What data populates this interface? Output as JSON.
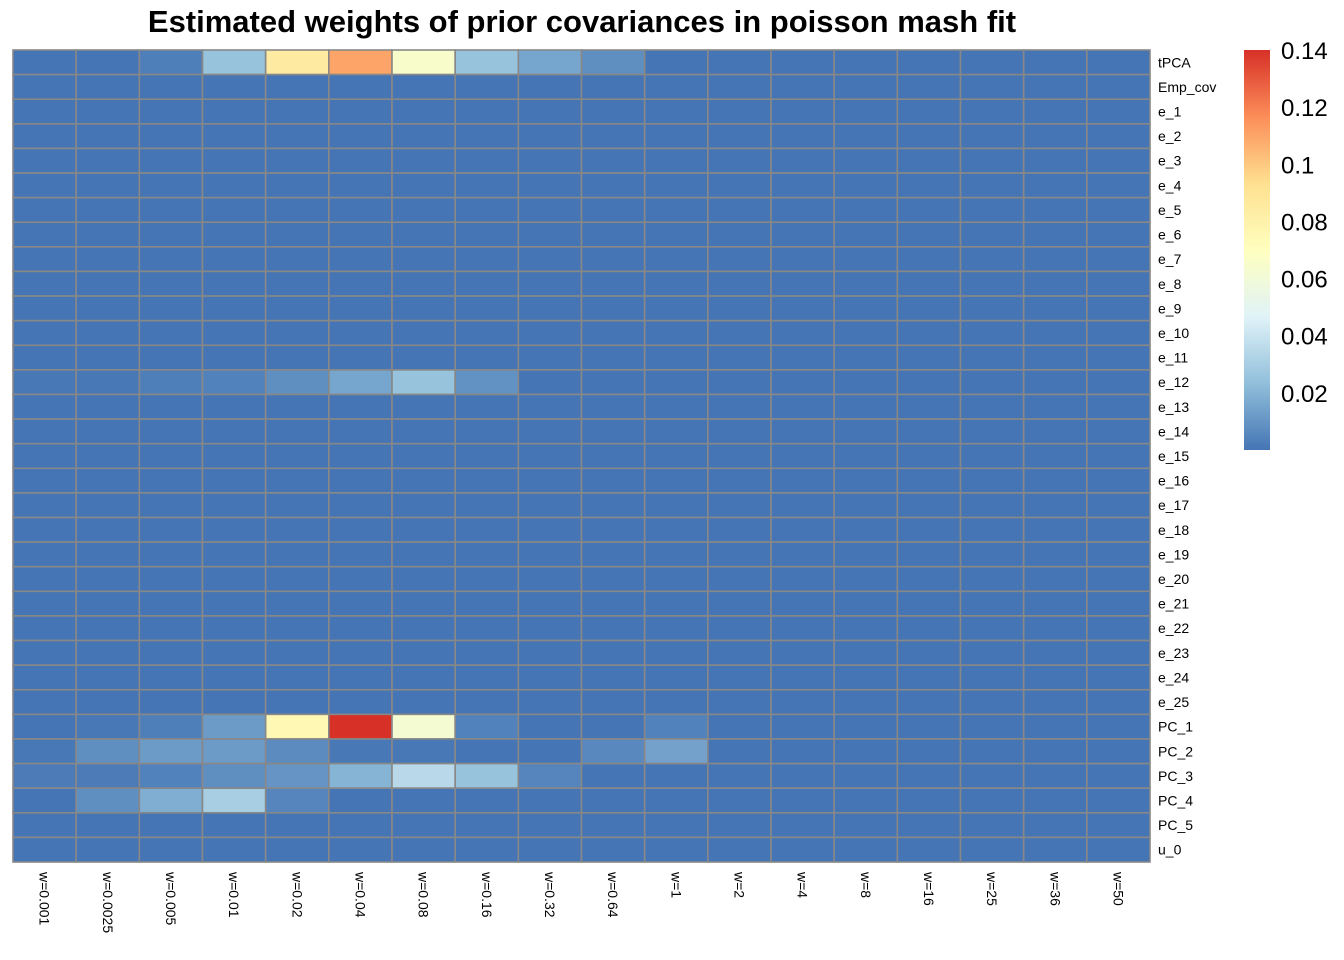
{
  "chart_data": {
    "type": "heatmap",
    "title": "Estimated weights of prior covariances in poisson mash fit",
    "columns": [
      "w=0.001",
      "w=0.0025",
      "w=0.005",
      "w=0.01",
      "w=0.02",
      "w=0.04",
      "w=0.08",
      "w=0.16",
      "w=0.32",
      "w=0.64",
      "w=1",
      "w=2",
      "w=4",
      "w=8",
      "w=16",
      "w=25",
      "w=36",
      "w=50"
    ],
    "rows": [
      "tPCA",
      "Emp_cov",
      "e_1",
      "e_2",
      "e_3",
      "e_4",
      "e_5",
      "e_6",
      "e_7",
      "e_8",
      "e_9",
      "e_10",
      "e_11",
      "e_12",
      "e_13",
      "e_14",
      "e_15",
      "e_16",
      "e_17",
      "e_18",
      "e_19",
      "e_20",
      "e_21",
      "e_22",
      "e_23",
      "e_24",
      "e_25",
      "PC_1",
      "PC_2",
      "PC_3",
      "PC_4",
      "PC_5",
      "u_0"
    ],
    "values": [
      [
        0.0,
        0.0,
        0.003,
        0.025,
        0.085,
        0.11,
        0.065,
        0.025,
        0.015,
        0.008,
        0,
        0,
        0,
        0,
        0,
        0,
        0,
        0
      ],
      [
        0,
        0,
        0,
        0,
        0,
        0,
        0,
        0,
        0,
        0,
        0,
        0,
        0,
        0,
        0,
        0,
        0,
        0
      ],
      [
        0,
        0,
        0,
        0,
        0,
        0,
        0,
        0,
        0,
        0,
        0,
        0,
        0,
        0,
        0,
        0,
        0,
        0
      ],
      [
        0,
        0,
        0,
        0,
        0,
        0,
        0,
        0,
        0,
        0,
        0,
        0,
        0,
        0,
        0,
        0,
        0,
        0
      ],
      [
        0,
        0,
        0,
        0,
        0,
        0,
        0,
        0,
        0,
        0,
        0,
        0,
        0,
        0,
        0,
        0,
        0,
        0
      ],
      [
        0,
        0,
        0,
        0,
        0,
        0,
        0,
        0,
        0,
        0,
        0,
        0,
        0,
        0,
        0,
        0,
        0,
        0
      ],
      [
        0,
        0,
        0,
        0,
        0,
        0,
        0,
        0,
        0,
        0,
        0,
        0,
        0,
        0,
        0,
        0,
        0,
        0
      ],
      [
        0,
        0,
        0,
        0,
        0,
        0,
        0,
        0,
        0,
        0,
        0,
        0,
        0,
        0,
        0,
        0,
        0,
        0
      ],
      [
        0,
        0,
        0,
        0,
        0,
        0,
        0,
        0,
        0,
        0,
        0,
        0,
        0,
        0,
        0,
        0,
        0,
        0
      ],
      [
        0,
        0,
        0,
        0,
        0,
        0,
        0,
        0,
        0,
        0,
        0,
        0,
        0,
        0,
        0,
        0,
        0,
        0
      ],
      [
        0,
        0,
        0,
        0,
        0,
        0,
        0,
        0,
        0,
        0,
        0,
        0,
        0,
        0,
        0,
        0,
        0,
        0
      ],
      [
        0,
        0,
        0,
        0,
        0,
        0,
        0,
        0,
        0,
        0,
        0,
        0,
        0,
        0,
        0,
        0,
        0,
        0
      ],
      [
        0,
        0,
        0,
        0,
        0,
        0,
        0,
        0,
        0,
        0,
        0,
        0,
        0,
        0,
        0,
        0,
        0,
        0
      ],
      [
        0.001,
        0.001,
        0.003,
        0.004,
        0.008,
        0.015,
        0.025,
        0.009,
        0,
        0,
        0,
        0,
        0,
        0,
        0,
        0,
        0,
        0
      ],
      [
        0,
        0,
        0,
        0,
        0,
        0,
        0,
        0,
        0,
        0,
        0,
        0,
        0,
        0,
        0,
        0,
        0,
        0
      ],
      [
        0,
        0,
        0,
        0,
        0,
        0,
        0,
        0,
        0,
        0,
        0,
        0,
        0,
        0,
        0,
        0,
        0,
        0
      ],
      [
        0,
        0,
        0,
        0,
        0,
        0,
        0,
        0,
        0,
        0,
        0,
        0,
        0,
        0,
        0,
        0,
        0,
        0
      ],
      [
        0,
        0,
        0,
        0,
        0,
        0,
        0,
        0,
        0,
        0,
        0,
        0,
        0,
        0,
        0,
        0,
        0,
        0
      ],
      [
        0,
        0,
        0,
        0,
        0,
        0,
        0,
        0,
        0,
        0,
        0,
        0,
        0,
        0,
        0,
        0,
        0,
        0
      ],
      [
        0,
        0,
        0,
        0,
        0,
        0,
        0,
        0,
        0,
        0,
        0,
        0,
        0,
        0,
        0,
        0,
        0,
        0
      ],
      [
        0,
        0,
        0,
        0,
        0,
        0,
        0,
        0,
        0,
        0,
        0,
        0,
        0,
        0,
        0,
        0,
        0,
        0
      ],
      [
        0,
        0,
        0,
        0,
        0,
        0,
        0,
        0,
        0,
        0,
        0,
        0,
        0,
        0,
        0,
        0,
        0,
        0
      ],
      [
        0,
        0,
        0,
        0,
        0,
        0,
        0,
        0,
        0,
        0,
        0,
        0,
        0,
        0,
        0,
        0,
        0,
        0
      ],
      [
        0,
        0,
        0,
        0,
        0,
        0,
        0,
        0,
        0,
        0,
        0,
        0,
        0,
        0,
        0,
        0,
        0,
        0
      ],
      [
        0,
        0,
        0,
        0,
        0,
        0,
        0,
        0,
        0,
        0,
        0,
        0,
        0,
        0,
        0,
        0,
        0,
        0
      ],
      [
        0,
        0,
        0,
        0,
        0,
        0,
        0,
        0,
        0,
        0,
        0,
        0,
        0,
        0,
        0,
        0,
        0,
        0
      ],
      [
        0,
        0,
        0,
        0,
        0,
        0,
        0,
        0,
        0,
        0,
        0,
        0,
        0,
        0,
        0,
        0,
        0,
        0
      ],
      [
        0,
        0.001,
        0.003,
        0.012,
        0.075,
        0.14,
        0.062,
        0.004,
        0,
        0,
        0.004,
        0,
        0,
        0,
        0,
        0,
        0,
        0
      ],
      [
        0.001,
        0.008,
        0.012,
        0.012,
        0.007,
        0.001,
        0.001,
        0,
        0,
        0.006,
        0.014,
        0,
        0,
        0,
        0,
        0,
        0,
        0
      ],
      [
        0.002,
        0.002,
        0.004,
        0.008,
        0.01,
        0.02,
        0.035,
        0.025,
        0.005,
        0,
        0,
        0,
        0,
        0,
        0,
        0,
        0,
        0
      ],
      [
        0,
        0.008,
        0.018,
        0.03,
        0.005,
        0,
        0,
        0,
        0,
        0,
        0,
        0,
        0,
        0,
        0,
        0,
        0,
        0
      ],
      [
        0,
        0,
        0,
        0,
        0,
        0,
        0,
        0,
        0,
        0,
        0,
        0,
        0,
        0,
        0,
        0,
        0,
        0
      ],
      [
        0,
        0,
        0,
        0,
        0,
        0,
        0,
        0,
        0,
        0,
        0,
        0,
        0,
        0,
        0,
        0,
        0,
        0
      ]
    ],
    "legend": {
      "position": "right",
      "min": 0,
      "max": 0.14,
      "ticks": [
        "0.02",
        "0.04",
        "0.06",
        "0.08",
        "0.1",
        "0.12",
        "0.14"
      ]
    },
    "colors": {
      "scale": [
        "#4575b4",
        "#91bfdb",
        "#e0f3f8",
        "#ffffbf",
        "#fee090",
        "#fc8d59",
        "#d73027"
      ],
      "cell_border": "#888888"
    }
  }
}
